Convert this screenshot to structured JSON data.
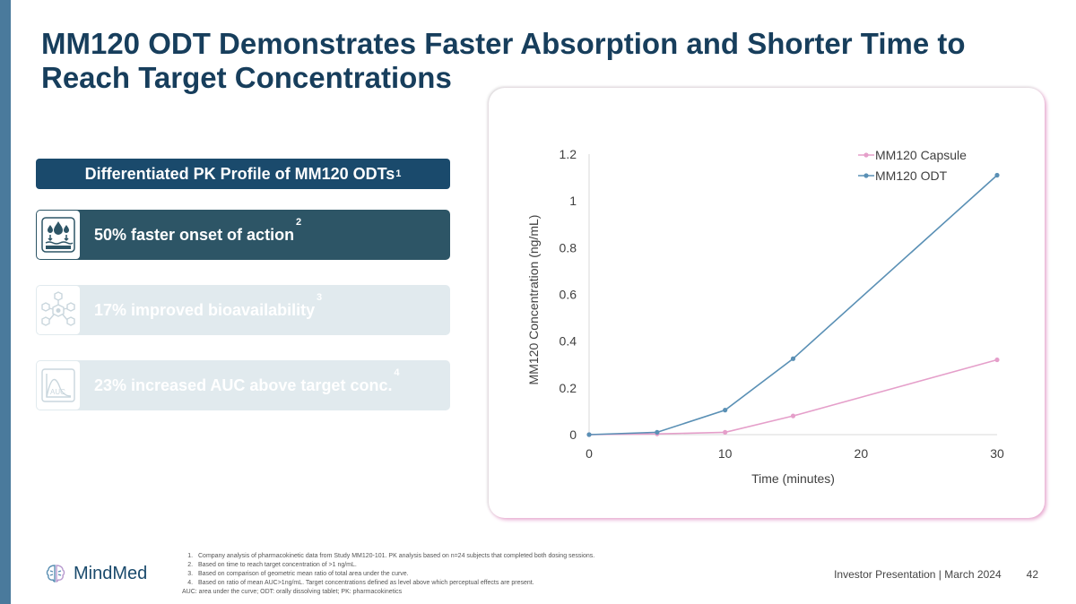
{
  "title": "MM120 ODT Demonstrates Faster Absorption and Shorter Time to Reach Target Concentrations",
  "pk_header": {
    "text": "Differentiated PK Profile of MM120 ODTs",
    "sup": "1"
  },
  "benefits": [
    {
      "text": "50% faster onset of action",
      "sup": "2",
      "icon": "absorption-icon"
    },
    {
      "text": "17% improved bioavailability",
      "sup": "3",
      "icon": "molecule-icon"
    },
    {
      "text": "23% increased AUC above target conc.",
      "sup": "4",
      "icon": "auc-icon"
    }
  ],
  "icon_text": {
    "auc": "AUC"
  },
  "colors": {
    "capsule": "#e59fca",
    "odt": "#5a90b5",
    "title": "#173e5c",
    "header": "#1a4a6c"
  },
  "chart_data": {
    "type": "line",
    "xlabel": "Time (minutes)",
    "ylabel": "MM120 Concentration (ng/mL)",
    "x": [
      0,
      5,
      10,
      15,
      30
    ],
    "x_ticks": [
      0,
      10,
      20,
      30
    ],
    "y_ticks": [
      0,
      0.2,
      0.4,
      0.6,
      0.8,
      1,
      1.2
    ],
    "xlim": [
      0,
      30
    ],
    "ylim": [
      0,
      1.2
    ],
    "legend_position": "top-right",
    "series": [
      {
        "name": "MM120 Capsule",
        "color": "#e59fca",
        "values": [
          0,
          0.003,
          0.01,
          0.08,
          0.32
        ]
      },
      {
        "name": "MM120 ODT",
        "color": "#5a90b5",
        "values": [
          0,
          0.01,
          0.105,
          0.325,
          1.11
        ]
      }
    ]
  },
  "footnotes": [
    "Company analysis of pharmacokinetic data from Study MM120-101. PK analysis based on n=24 subjects that completed both dosing sessions.",
    "Based on time to reach target concentration of >1 ng/mL.",
    "Based on comparison of geometric mean ratio of total area under the curve.",
    "Based on ratio of mean AUC>1ng/mL. Target concentrations defined as level above which perceptual effects are present."
  ],
  "footnote_abbrev": "AUC: area under the curve; ODT: orally dissolving tablet; PK: pharmacokinetics",
  "logo": {
    "text": "MindMed"
  },
  "footer": {
    "presentation": "Investor Presentation | March 2024",
    "page": "42"
  }
}
